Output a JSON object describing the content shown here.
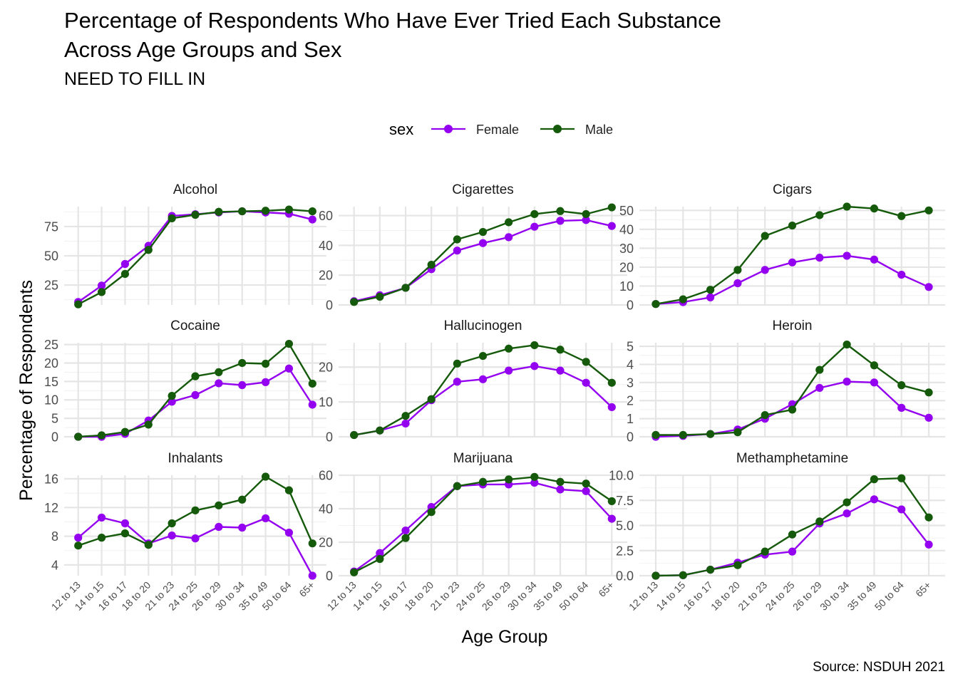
{
  "title_line1": "Percentage of Respondents Who Have Ever Tried Each Substance",
  "title_line2": "Across Age Groups and Sex",
  "subtitle": "NEED TO FILL IN",
  "caption": "Source: NSDUH 2021",
  "legend": {
    "title": "sex",
    "position": "top",
    "items": [
      {
        "label": "Female",
        "color": "#9400f0"
      },
      {
        "label": "Male",
        "color": "#145a0a"
      }
    ]
  },
  "chart_data": {
    "type": "line",
    "facet_layout": "3x3, free y scales",
    "xlabel": "Age Group",
    "ylabel": "Percentage of Respondents",
    "categories": [
      "12 to 13",
      "14 to 15",
      "16 to 17",
      "18 to 20",
      "21 to 23",
      "24 to 25",
      "26 to 29",
      "30 to 34",
      "35 to 49",
      "50 to 64",
      "65+"
    ],
    "series_names": [
      "Female",
      "Male"
    ],
    "series_colors": {
      "Female": "#9400f0",
      "Male": "#145a0a"
    },
    "grid": true,
    "panels": [
      {
        "name": "Alcohol",
        "ylim": [
          8,
          92
        ],
        "yticks": [
          "25",
          "50",
          "75"
        ],
        "ytick_values": [
          25,
          50,
          75
        ],
        "female": [
          10.5,
          24.5,
          43,
          58.5,
          84,
          85.5,
          87,
          88,
          87,
          86,
          81
        ],
        "male": [
          8.5,
          19,
          34.5,
          55,
          82,
          85,
          87.5,
          88,
          88.5,
          89.5,
          88
        ]
      },
      {
        "name": "Cigarettes",
        "ylim": [
          0,
          66
        ],
        "yticks": [
          "0",
          "20",
          "40",
          "60"
        ],
        "ytick_values": [
          0,
          20,
          40,
          60
        ],
        "female": [
          2.5,
          6.5,
          11.5,
          24,
          36.5,
          41.5,
          45.5,
          52.5,
          56.5,
          57,
          53
        ],
        "male": [
          2,
          5.5,
          11.5,
          27,
          44,
          49,
          55.5,
          61,
          63,
          61,
          65.5
        ]
      },
      {
        "name": "Cigars",
        "ylim": [
          0,
          52
        ],
        "yticks": [
          "0",
          "10",
          "20",
          "30",
          "40",
          "50"
        ],
        "ytick_values": [
          0,
          10,
          20,
          30,
          40,
          50
        ],
        "female": [
          0.5,
          1.5,
          4,
          11.5,
          18.5,
          22.5,
          25,
          26,
          24,
          16,
          9.5
        ],
        "male": [
          0.5,
          3,
          8,
          18.5,
          36.5,
          42,
          47.5,
          52,
          51,
          47,
          50
        ]
      },
      {
        "name": "Cocaine",
        "ylim": [
          0,
          25.5
        ],
        "yticks": [
          "0",
          "5",
          "10",
          "15",
          "20",
          "25"
        ],
        "ytick_values": [
          0,
          5,
          10,
          15,
          20,
          25
        ],
        "female": [
          0,
          0,
          0.8,
          4.4,
          9.5,
          11.3,
          14.5,
          14,
          14.8,
          18.5,
          8.7
        ],
        "male": [
          0,
          0.4,
          1.3,
          3.3,
          11.1,
          16.4,
          17.5,
          20,
          19.8,
          25.2,
          14.4
        ]
      },
      {
        "name": "Hallucinogen",
        "ylim": [
          0,
          27
        ],
        "yticks": [
          "0",
          "10",
          "20"
        ],
        "ytick_values": [
          0,
          10,
          20
        ],
        "female": [
          0.5,
          1.8,
          3.8,
          10.5,
          15.8,
          16.5,
          19,
          20.3,
          19,
          15.5,
          8.5
        ],
        "male": [
          0.5,
          1.8,
          6,
          10.8,
          21,
          23.2,
          25.3,
          26.3,
          25,
          21.5,
          15.5
        ]
      },
      {
        "name": "Heroin",
        "ylim": [
          0,
          5.2
        ],
        "yticks": [
          "0",
          "1",
          "2",
          "3",
          "4",
          "5"
        ],
        "ytick_values": [
          0,
          1,
          2,
          3,
          4,
          5
        ],
        "female": [
          0,
          0.05,
          0.15,
          0.4,
          1,
          1.8,
          2.7,
          3.05,
          3,
          1.6,
          1.05
        ],
        "male": [
          0.1,
          0.1,
          0.15,
          0.25,
          1.2,
          1.5,
          3.7,
          5.1,
          3.95,
          2.85,
          2.45
        ]
      },
      {
        "name": "Inhalants",
        "ylim": [
          2.5,
          16.5
        ],
        "yticks": [
          "4",
          "8",
          "12",
          "16"
        ],
        "ytick_values": [
          4,
          8,
          12,
          16
        ],
        "female": [
          7.8,
          10.6,
          9.8,
          7,
          8.1,
          7.7,
          9.3,
          9.2,
          10.5,
          8.5,
          2.5
        ],
        "male": [
          6.7,
          7.8,
          8.4,
          6.8,
          9.8,
          11.6,
          12.3,
          13.1,
          16.3,
          14.4,
          7
        ]
      },
      {
        "name": "Marijuana",
        "ylim": [
          0,
          60
        ],
        "yticks": [
          "0",
          "20",
          "40",
          "60"
        ],
        "ytick_values": [
          0,
          20,
          40,
          60
        ],
        "female": [
          2.5,
          13.5,
          27,
          41,
          53.5,
          54.5,
          54.5,
          55.5,
          51.5,
          50.5,
          34
        ],
        "male": [
          2,
          10,
          22.5,
          38,
          53.5,
          56,
          57.5,
          59,
          56,
          55,
          44.5
        ]
      },
      {
        "name": "Methamphetamine",
        "ylim": [
          0,
          10
        ],
        "yticks": [
          "0.0",
          "2.5",
          "5.0",
          "7.5",
          "10.0"
        ],
        "ytick_values": [
          0,
          2.5,
          5,
          7.5,
          10
        ],
        "female": [
          0,
          0.05,
          0.6,
          1.3,
          2.1,
          2.4,
          5.2,
          6.2,
          7.6,
          6.6,
          3.1
        ],
        "male": [
          0,
          0.05,
          0.6,
          1.05,
          2.4,
          4.1,
          5.4,
          7.3,
          9.6,
          9.7,
          5.8
        ]
      }
    ]
  }
}
